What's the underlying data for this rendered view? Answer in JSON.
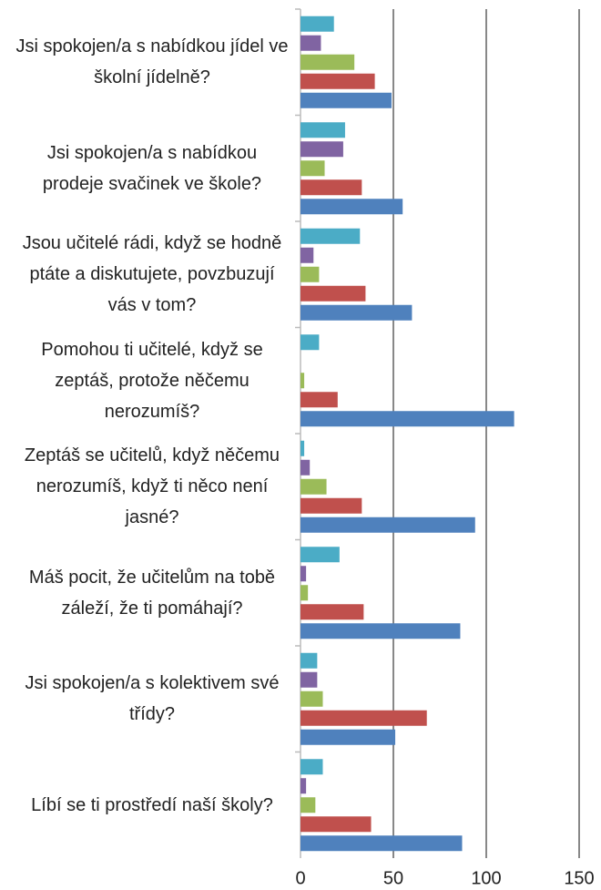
{
  "chart_data": {
    "type": "barh",
    "categories": [
      "Jsi spokojen/a s nabídkou jídel ve školní jídelně?",
      "Jsi spokojen/a s nabídkou prodeje svačinek ve škole?",
      "Jsou učitelé rádi, když se hodně ptáte a diskutujete, povzbuzují vás v tom?",
      "Pomohou ti učitelé, když se zeptáš, protože něčemu nerozumíš?",
      "Zeptáš se učitelů, když něčemu nerozumíš, když ti něco není jasné?",
      "Máš pocit, že učitelům na tobě záleží, že ti pomáhají?",
      "Jsi spokojen/a s kolektivem své třídy?",
      "Líbí se ti prostředí naší školy?"
    ],
    "series": [
      {
        "color": "#4bacc6",
        "values": [
          18,
          24,
          32,
          10,
          2,
          21,
          9,
          12
        ]
      },
      {
        "color": "#8064a2",
        "values": [
          11,
          23,
          7,
          0,
          5,
          3,
          9,
          3
        ]
      },
      {
        "color": "#9bbb59",
        "values": [
          29,
          13,
          10,
          2,
          14,
          4,
          12,
          8
        ]
      },
      {
        "color": "#c0504d",
        "values": [
          40,
          33,
          35,
          20,
          33,
          34,
          68,
          38
        ]
      },
      {
        "color": "#4f81bd",
        "values": [
          49,
          55,
          60,
          115,
          94,
          86,
          51,
          87
        ]
      }
    ],
    "xlim": [
      0,
      150
    ],
    "xticks": [
      0,
      50,
      100,
      150
    ],
    "grid": true
  }
}
